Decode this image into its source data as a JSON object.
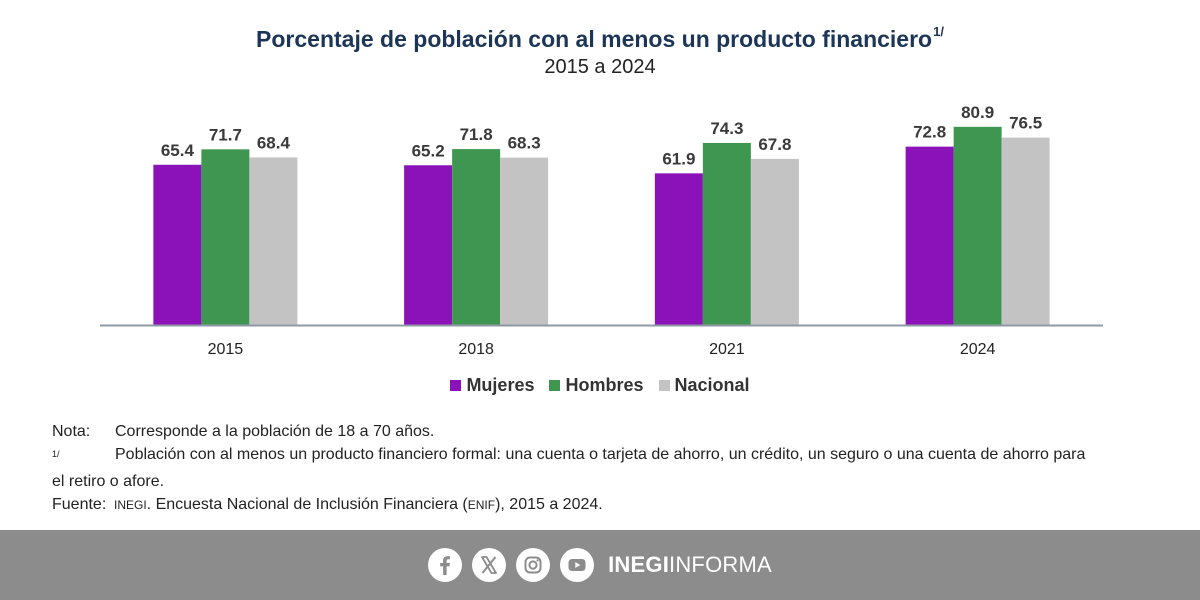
{
  "header": {
    "title": "Porcentaje de población con al menos un producto financiero",
    "title_note": "1/",
    "subtitle": "2015 a 2024"
  },
  "chart_data": {
    "type": "bar",
    "title": "Porcentaje de población con al menos un producto financiero",
    "subtitle": "2015 a 2024",
    "categories": [
      "2015",
      "2018",
      "2021",
      "2024"
    ],
    "series": [
      {
        "name": "Mujeres",
        "color": "#8a12b8",
        "values": [
          65.4,
          65.2,
          61.9,
          72.8
        ]
      },
      {
        "name": "Hombres",
        "color": "#3f9650",
        "values": [
          71.7,
          71.8,
          74.3,
          80.9
        ]
      },
      {
        "name": "Nacional",
        "color": "#c3c3c3",
        "values": [
          68.4,
          68.3,
          67.8,
          76.5
        ]
      }
    ],
    "ylim": [
      0,
      100
    ],
    "xlabel": "",
    "ylabel": "",
    "grid": false,
    "legend": "bottom-center"
  },
  "notes": {
    "nota_label": "Nota:",
    "nota_text": "Corresponde a la población de 18 a 70 años.",
    "footnote_label": "1/",
    "footnote_text_line1": "Población con al menos un producto financiero formal: una cuenta o tarjeta de ahorro, un crédito, un seguro o una cuenta de ahorro para",
    "footnote_text_line2": "el retiro o afore.",
    "fuente_label": "Fuente:",
    "fuente_org": "INEGI",
    "fuente_text_a": ". Encuesta Nacional de Inclusión Financiera (",
    "fuente_abbr": "ENIF",
    "fuente_text_b": "), 2015 a 2024."
  },
  "footer": {
    "icons": [
      "facebook-icon",
      "x-icon",
      "instagram-icon",
      "youtube-icon"
    ],
    "brand_bold": "INEGI",
    "brand_light": "INFORMA"
  }
}
